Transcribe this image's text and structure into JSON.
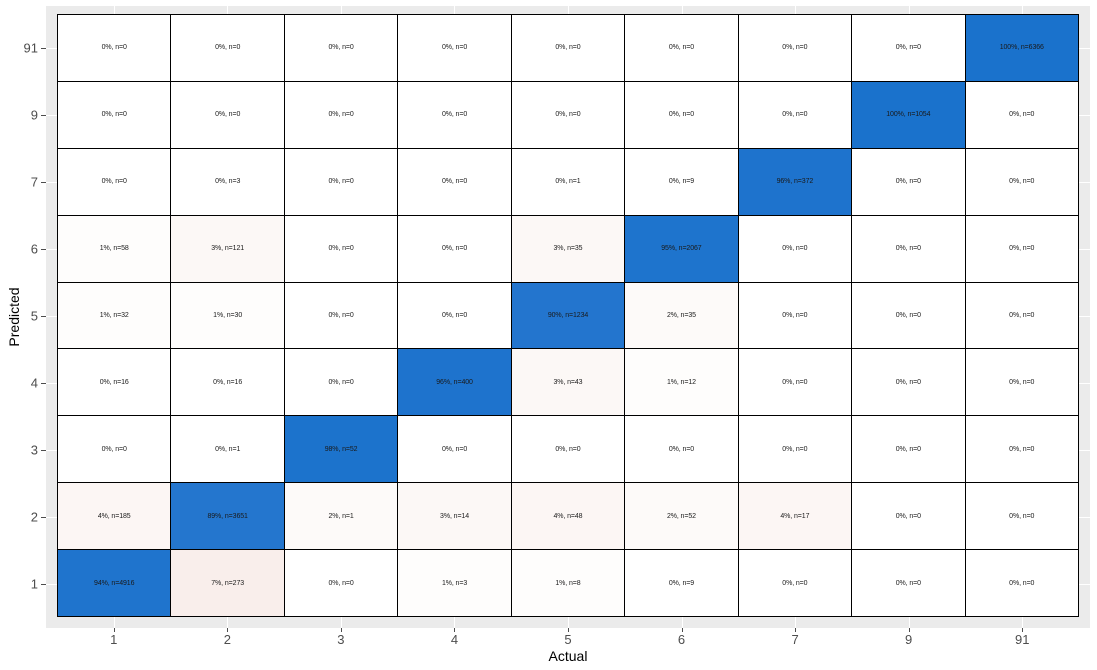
{
  "chart_data": {
    "type": "heatmap",
    "title": "",
    "xlabel": "Actual",
    "ylabel": "Predicted",
    "x_categories": [
      "1",
      "2",
      "3",
      "4",
      "5",
      "6",
      "7",
      "9",
      "91"
    ],
    "y_categories_top_to_bottom": [
      "91",
      "9",
      "7",
      "6",
      "5",
      "4",
      "3",
      "2",
      "1"
    ],
    "legend": "none",
    "grid": true,
    "color_scale": {
      "low": "#ffffff",
      "mid_low": "#f8ebe8",
      "high": "#1a72cc"
    },
    "rows": [
      {
        "predicted": "91",
        "cells": [
          {
            "pct": 0,
            "n": 0,
            "label": "0%, n=0"
          },
          {
            "pct": 0,
            "n": 0,
            "label": "0%, n=0"
          },
          {
            "pct": 0,
            "n": 0,
            "label": "0%, n=0"
          },
          {
            "pct": 0,
            "n": 0,
            "label": "0%, n=0"
          },
          {
            "pct": 0,
            "n": 0,
            "label": "0%, n=0"
          },
          {
            "pct": 0,
            "n": 0,
            "label": "0%, n=0"
          },
          {
            "pct": 0,
            "n": 0,
            "label": "0%, n=0"
          },
          {
            "pct": 0,
            "n": 0,
            "label": "0%, n=0"
          },
          {
            "pct": 100,
            "n": 6366,
            "label": "100%, n=6366"
          }
        ]
      },
      {
        "predicted": "9",
        "cells": [
          {
            "pct": 0,
            "n": 0,
            "label": "0%, n=0"
          },
          {
            "pct": 0,
            "n": 0,
            "label": "0%, n=0"
          },
          {
            "pct": 0,
            "n": 0,
            "label": "0%, n=0"
          },
          {
            "pct": 0,
            "n": 0,
            "label": "0%, n=0"
          },
          {
            "pct": 0,
            "n": 0,
            "label": "0%, n=0"
          },
          {
            "pct": 0,
            "n": 0,
            "label": "0%, n=0"
          },
          {
            "pct": 0,
            "n": 0,
            "label": "0%, n=0"
          },
          {
            "pct": 100,
            "n": 1054,
            "label": "100%, n=1054"
          },
          {
            "pct": 0,
            "n": 0,
            "label": "0%, n=0"
          }
        ]
      },
      {
        "predicted": "7",
        "cells": [
          {
            "pct": 0,
            "n": 0,
            "label": "0%, n=0"
          },
          {
            "pct": 0,
            "n": 3,
            "label": "0%, n=3"
          },
          {
            "pct": 0,
            "n": 0,
            "label": "0%, n=0"
          },
          {
            "pct": 0,
            "n": 0,
            "label": "0%, n=0"
          },
          {
            "pct": 0,
            "n": 1,
            "label": "0%, n=1"
          },
          {
            "pct": 0,
            "n": 9,
            "label": "0%, n=9"
          },
          {
            "pct": 96,
            "n": 372,
            "label": "96%, n=372"
          },
          {
            "pct": 0,
            "n": 0,
            "label": "0%, n=0"
          },
          {
            "pct": 0,
            "n": 0,
            "label": "0%, n=0"
          }
        ]
      },
      {
        "predicted": "6",
        "cells": [
          {
            "pct": 1,
            "n": 58,
            "label": "1%, n=58"
          },
          {
            "pct": 3,
            "n": 121,
            "label": "3%, n=121"
          },
          {
            "pct": 0,
            "n": 0,
            "label": "0%, n=0"
          },
          {
            "pct": 0,
            "n": 0,
            "label": "0%, n=0"
          },
          {
            "pct": 3,
            "n": 35,
            "label": "3%, n=35"
          },
          {
            "pct": 95,
            "n": 2067,
            "label": "95%, n=2067"
          },
          {
            "pct": 0,
            "n": 0,
            "label": "0%, n=0"
          },
          {
            "pct": 0,
            "n": 0,
            "label": "0%, n=0"
          },
          {
            "pct": 0,
            "n": 0,
            "label": "0%, n=0"
          }
        ]
      },
      {
        "predicted": "5",
        "cells": [
          {
            "pct": 1,
            "n": 32,
            "label": "1%, n=32"
          },
          {
            "pct": 1,
            "n": 30,
            "label": "1%, n=30"
          },
          {
            "pct": 0,
            "n": 0,
            "label": "0%, n=0"
          },
          {
            "pct": 0,
            "n": 0,
            "label": "0%, n=0"
          },
          {
            "pct": 90,
            "n": 1234,
            "label": "90%, n=1234"
          },
          {
            "pct": 2,
            "n": 35,
            "label": "2%, n=35"
          },
          {
            "pct": 0,
            "n": 0,
            "label": "0%, n=0"
          },
          {
            "pct": 0,
            "n": 0,
            "label": "0%, n=0"
          },
          {
            "pct": 0,
            "n": 0,
            "label": "0%, n=0"
          }
        ]
      },
      {
        "predicted": "4",
        "cells": [
          {
            "pct": 0,
            "n": 16,
            "label": "0%, n=16"
          },
          {
            "pct": 0,
            "n": 16,
            "label": "0%, n=16"
          },
          {
            "pct": 0,
            "n": 0,
            "label": "0%, n=0"
          },
          {
            "pct": 96,
            "n": 400,
            "label": "96%, n=400"
          },
          {
            "pct": 3,
            "n": 43,
            "label": "3%, n=43"
          },
          {
            "pct": 1,
            "n": 12,
            "label": "1%, n=12"
          },
          {
            "pct": 0,
            "n": 0,
            "label": "0%, n=0"
          },
          {
            "pct": 0,
            "n": 0,
            "label": "0%, n=0"
          },
          {
            "pct": 0,
            "n": 0,
            "label": "0%, n=0"
          }
        ]
      },
      {
        "predicted": "3",
        "cells": [
          {
            "pct": 0,
            "n": 0,
            "label": "0%, n=0"
          },
          {
            "pct": 0,
            "n": 1,
            "label": "0%, n=1"
          },
          {
            "pct": 98,
            "n": 52,
            "label": "98%, n=52"
          },
          {
            "pct": 0,
            "n": 0,
            "label": "0%, n=0"
          },
          {
            "pct": 0,
            "n": 0,
            "label": "0%, n=0"
          },
          {
            "pct": 0,
            "n": 0,
            "label": "0%, n=0"
          },
          {
            "pct": 0,
            "n": 0,
            "label": "0%, n=0"
          },
          {
            "pct": 0,
            "n": 0,
            "label": "0%, n=0"
          },
          {
            "pct": 0,
            "n": 0,
            "label": "0%, n=0"
          }
        ]
      },
      {
        "predicted": "2",
        "cells": [
          {
            "pct": 4,
            "n": 185,
            "label": "4%, n=185"
          },
          {
            "pct": 89,
            "n": 3651,
            "label": "89%, n=3651"
          },
          {
            "pct": 2,
            "n": 1,
            "label": "2%, n=1"
          },
          {
            "pct": 3,
            "n": 14,
            "label": "3%, n=14"
          },
          {
            "pct": 4,
            "n": 48,
            "label": "4%, n=48"
          },
          {
            "pct": 2,
            "n": 52,
            "label": "2%, n=52"
          },
          {
            "pct": 4,
            "n": 17,
            "label": "4%, n=17"
          },
          {
            "pct": 0,
            "n": 0,
            "label": "0%, n=0"
          },
          {
            "pct": 0,
            "n": 0,
            "label": "0%, n=0"
          }
        ]
      },
      {
        "predicted": "1",
        "cells": [
          {
            "pct": 94,
            "n": 4916,
            "label": "94%, n=4916"
          },
          {
            "pct": 7,
            "n": 273,
            "label": "7%, n=273"
          },
          {
            "pct": 0,
            "n": 0,
            "label": "0%, n=0"
          },
          {
            "pct": 1,
            "n": 3,
            "label": "1%, n=3"
          },
          {
            "pct": 1,
            "n": 8,
            "label": "1%, n=8"
          },
          {
            "pct": 0,
            "n": 9,
            "label": "0%, n=9"
          },
          {
            "pct": 0,
            "n": 0,
            "label": "0%, n=0"
          },
          {
            "pct": 0,
            "n": 0,
            "label": "0%, n=0"
          },
          {
            "pct": 0,
            "n": 0,
            "label": "0%, n=0"
          }
        ]
      }
    ]
  }
}
